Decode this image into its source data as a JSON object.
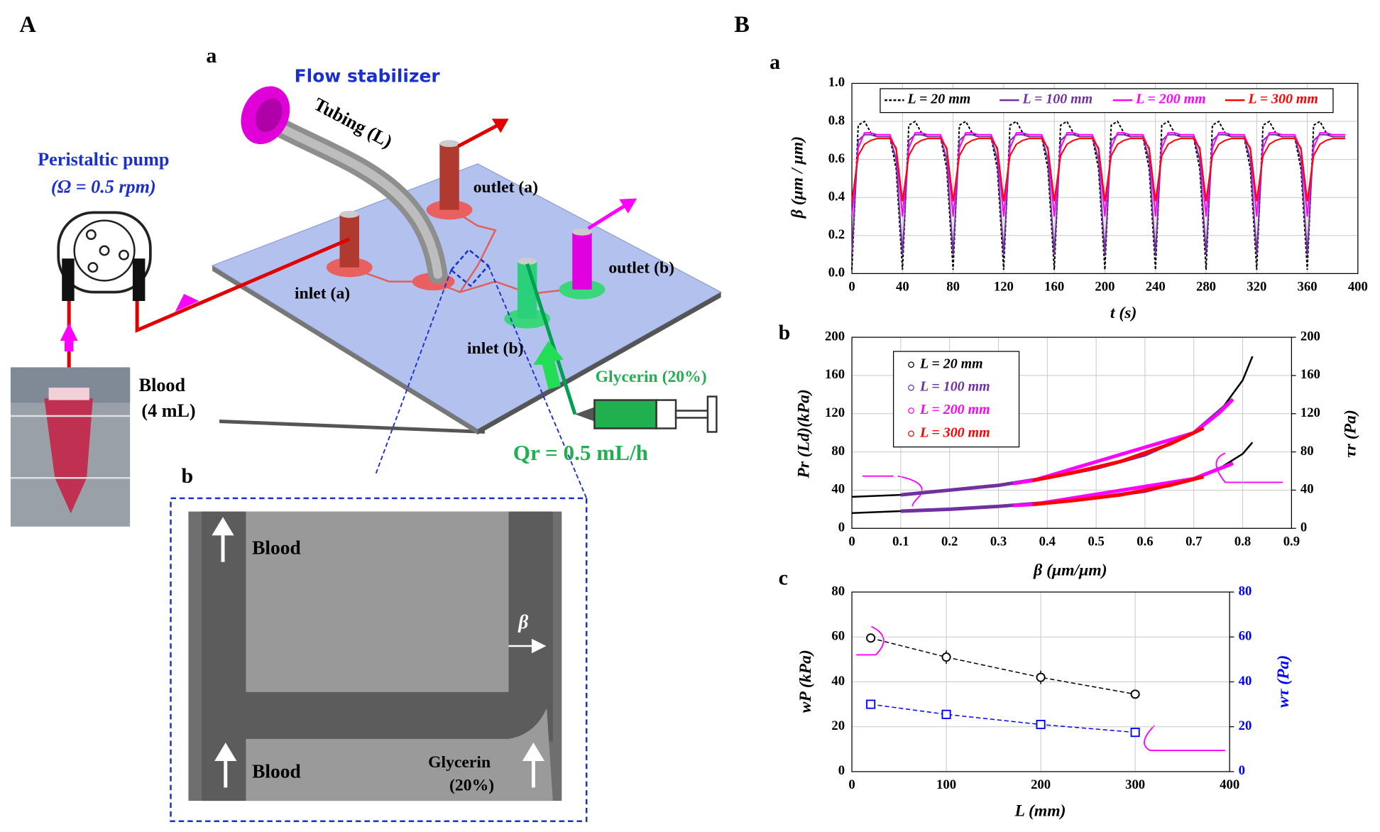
{
  "figure": {
    "panel_labels": [
      "A",
      "B",
      "a",
      "b"
    ],
    "diagram": {
      "flow_stabilizer": "Flow stabilizer",
      "tubing": "Tubing (L)",
      "pump": "Peristaltic pump",
      "pump_speed": "(Ω = 0.5 rpm)",
      "outlet_a": "outlet (a)",
      "outlet_b": "outlet (b)",
      "inlet_a": "inlet (a)",
      "inlet_b": "inlet (b)",
      "blood": "Blood",
      "blood_volume": "(4 mL)",
      "glycerin": "Glycerin (20%)",
      "flow_rate": "Qr = 0.5 mL/h"
    },
    "micrograph": {
      "blood_top": "Blood",
      "blood_bottom": "Blood",
      "beta": "β",
      "glycerin": "Glycerin",
      "glycerin_pct": "(20%)"
    }
  },
  "chart_data": [
    {
      "type": "line",
      "panel": "a",
      "xlabel": "t (s)",
      "ylabel": "β (μm / μm)",
      "xlim": [
        0,
        400
      ],
      "xticks": [
        0,
        40,
        80,
        120,
        160,
        200,
        240,
        280,
        320,
        360,
        400
      ],
      "ylim": [
        0,
        1
      ],
      "yticks": [
        {
          "value": 0,
          "label": "0.0"
        },
        0.2,
        0.4,
        0.6,
        0.8,
        {
          "value": 1,
          "label": "1.0"
        }
      ],
      "grid": true,
      "legend": "top",
      "x": [
        0,
        5,
        10,
        15,
        20,
        25,
        30,
        35,
        40,
        45,
        50,
        55,
        60,
        65,
        70,
        75,
        80,
        85,
        90,
        95,
        100,
        105,
        110,
        115,
        120,
        125,
        130,
        135,
        140,
        145,
        150,
        155,
        160,
        165,
        170,
        175,
        180,
        185,
        190,
        195,
        200,
        205,
        210,
        215,
        220,
        225,
        230,
        235,
        240,
        245,
        250,
        255,
        260,
        265,
        270,
        275,
        280,
        285,
        290,
        295,
        300,
        305,
        310,
        315,
        320,
        325,
        330,
        335,
        340,
        345,
        350,
        355,
        360,
        365,
        370,
        375,
        380,
        385,
        390
      ],
      "series": [
        {
          "name": "L = 20 mm",
          "color": "#000000",
          "dashed": true,
          "values": [
            0.02,
            0.78,
            0.8,
            0.74,
            0.72,
            0.72,
            0.72,
            0.55,
            0.02,
            0.78,
            0.8,
            0.74,
            0.72,
            0.72,
            0.72,
            0.55,
            0.02,
            0.78,
            0.8,
            0.74,
            0.72,
            0.72,
            0.72,
            0.55,
            0.02,
            0.78,
            0.8,
            0.74,
            0.72,
            0.72,
            0.72,
            0.55,
            0.02,
            0.78,
            0.8,
            0.74,
            0.72,
            0.72,
            0.72,
            0.55,
            0.02,
            0.78,
            0.8,
            0.74,
            0.72,
            0.72,
            0.72,
            0.55,
            0.02,
            0.78,
            0.8,
            0.74,
            0.72,
            0.72,
            0.72,
            0.55,
            0.02,
            0.78,
            0.8,
            0.74,
            0.72,
            0.72,
            0.72,
            0.55,
            0.02,
            0.78,
            0.8,
            0.74,
            0.72,
            0.72,
            0.72,
            0.55,
            0.02,
            0.78,
            0.8,
            0.74,
            0.72,
            0.72,
            0.72
          ]
        },
        {
          "name": "L = 100 mm",
          "color": "#7030a0",
          "values": [
            0.1,
            0.7,
            0.73,
            0.73,
            0.72,
            0.72,
            0.72,
            0.6,
            0.1,
            0.7,
            0.73,
            0.73,
            0.72,
            0.72,
            0.72,
            0.6,
            0.1,
            0.7,
            0.73,
            0.73,
            0.72,
            0.72,
            0.72,
            0.6,
            0.1,
            0.7,
            0.73,
            0.73,
            0.72,
            0.72,
            0.72,
            0.6,
            0.1,
            0.7,
            0.73,
            0.73,
            0.72,
            0.72,
            0.72,
            0.6,
            0.1,
            0.7,
            0.73,
            0.73,
            0.72,
            0.72,
            0.72,
            0.6,
            0.1,
            0.7,
            0.73,
            0.73,
            0.72,
            0.72,
            0.72,
            0.6,
            0.1,
            0.7,
            0.73,
            0.73,
            0.72,
            0.72,
            0.72,
            0.6,
            0.1,
            0.7,
            0.73,
            0.73,
            0.72,
            0.72,
            0.72,
            0.6,
            0.1,
            0.7,
            0.73,
            0.73,
            0.72,
            0.72,
            0.72
          ]
        },
        {
          "name": "L = 200 mm",
          "color": "#ff00ff",
          "values": [
            0.3,
            0.66,
            0.74,
            0.74,
            0.73,
            0.73,
            0.73,
            0.65,
            0.3,
            0.66,
            0.74,
            0.74,
            0.73,
            0.73,
            0.73,
            0.65,
            0.3,
            0.66,
            0.74,
            0.74,
            0.73,
            0.73,
            0.73,
            0.65,
            0.3,
            0.66,
            0.74,
            0.74,
            0.73,
            0.73,
            0.73,
            0.65,
            0.3,
            0.66,
            0.74,
            0.74,
            0.73,
            0.73,
            0.73,
            0.65,
            0.3,
            0.66,
            0.74,
            0.74,
            0.73,
            0.73,
            0.73,
            0.65,
            0.3,
            0.66,
            0.74,
            0.74,
            0.73,
            0.73,
            0.73,
            0.65,
            0.3,
            0.66,
            0.74,
            0.74,
            0.73,
            0.73,
            0.73,
            0.65,
            0.3,
            0.66,
            0.74,
            0.74,
            0.73,
            0.73,
            0.73,
            0.65,
            0.3,
            0.66,
            0.74,
            0.74,
            0.73,
            0.73,
            0.73
          ]
        },
        {
          "name": "L = 300 mm",
          "color": "#ff0000",
          "values": [
            0.38,
            0.62,
            0.68,
            0.7,
            0.71,
            0.71,
            0.71,
            0.66,
            0.38,
            0.62,
            0.68,
            0.7,
            0.71,
            0.71,
            0.71,
            0.66,
            0.38,
            0.62,
            0.68,
            0.7,
            0.71,
            0.71,
            0.71,
            0.66,
            0.38,
            0.62,
            0.68,
            0.7,
            0.71,
            0.71,
            0.71,
            0.66,
            0.38,
            0.62,
            0.68,
            0.7,
            0.71,
            0.71,
            0.71,
            0.66,
            0.38,
            0.62,
            0.68,
            0.7,
            0.71,
            0.71,
            0.71,
            0.66,
            0.38,
            0.62,
            0.68,
            0.7,
            0.71,
            0.71,
            0.71,
            0.66,
            0.38,
            0.62,
            0.68,
            0.7,
            0.71,
            0.71,
            0.71,
            0.66,
            0.38,
            0.62,
            0.68,
            0.7,
            0.71,
            0.71,
            0.71,
            0.66,
            0.38,
            0.62,
            0.68,
            0.7,
            0.71,
            0.71,
            0.71
          ]
        }
      ]
    },
    {
      "type": "dual_curve",
      "panel": "b",
      "xlabel": "β (μm/μm)",
      "ylabel": "Pr (Ld)(kPa)",
      "y2label": "τr (Pa)",
      "xlim": [
        0,
        0.9
      ],
      "xticks": [
        0,
        0.1,
        0.2,
        0.3,
        0.4,
        0.5,
        0.6,
        0.7,
        0.8,
        0.9
      ],
      "ylim": [
        0,
        200
      ],
      "yticks": [
        0,
        40,
        80,
        120,
        160,
        200
      ],
      "y2lim": [
        0,
        200
      ],
      "y2ticks": [
        0,
        40,
        80,
        120,
        160,
        200
      ],
      "grid": true,
      "legend": "upper left",
      "series": [
        {
          "name": "L = 20 mm",
          "color": "#000000",
          "x": [
            0,
            0.1,
            0.2,
            0.3,
            0.4,
            0.5,
            0.6,
            0.7,
            0.75,
            0.8,
            0.82
          ],
          "values": [
            33,
            35,
            40,
            45,
            53,
            63,
            77,
            100,
            120,
            155,
            180
          ],
          "y2_values": [
            16,
            18,
            20,
            23,
            27,
            32,
            39,
            52,
            62,
            78,
            90
          ]
        },
        {
          "name": "L = 100 mm",
          "color": "#7030a0",
          "x": [
            0.1,
            0.2,
            0.3,
            0.4,
            0.5,
            0.6,
            0.7,
            0.78
          ],
          "values": [
            35,
            40,
            45,
            53,
            63,
            77,
            100,
            135
          ],
          "y2_values": [
            18,
            20,
            23,
            27,
            32,
            39,
            52,
            68
          ]
        },
        {
          "name": "L = 200 mm",
          "color": "#ff00ff",
          "x": [
            0.33,
            0.37,
            0.7,
            0.75,
            0.78
          ],
          "values": [
            47,
            50,
            100,
            120,
            135
          ],
          "y2_values": [
            24,
            25,
            52,
            62,
            68
          ]
        },
        {
          "name": "L = 300 mm",
          "color": "#ff0000",
          "x": [
            0.37,
            0.45,
            0.55,
            0.65,
            0.72
          ],
          "values": [
            50,
            58,
            70,
            88,
            105
          ],
          "y2_values": [
            25,
            29,
            35,
            45,
            54
          ]
        }
      ]
    },
    {
      "type": "errorline",
      "panel": "c",
      "xlabel": "L (mm)",
      "ylabel": "wP (kPa)",
      "y2label": "wτ (Pa)",
      "xlim": [
        0,
        400
      ],
      "xticks": [
        0,
        100,
        200,
        300,
        400
      ],
      "ylim": [
        0,
        80
      ],
      "yticks": [
        0,
        20,
        40,
        60,
        80
      ],
      "y2lim": [
        0,
        80
      ],
      "y2ticks": [
        0,
        20,
        40,
        60,
        80
      ],
      "grid": true,
      "x": [
        20,
        100,
        200,
        300
      ],
      "series": [
        {
          "color": "#000000",
          "marker": "circle",
          "values": [
            59.5,
            51,
            42,
            34.5
          ],
          "errors": [
            1.5,
            3,
            3,
            1
          ]
        },
        {
          "color": "#0000ff",
          "marker": "square",
          "axis": "y2",
          "values": [
            30,
            25.5,
            21,
            17.5
          ],
          "errors": [
            1,
            1,
            1,
            1
          ]
        }
      ]
    }
  ]
}
